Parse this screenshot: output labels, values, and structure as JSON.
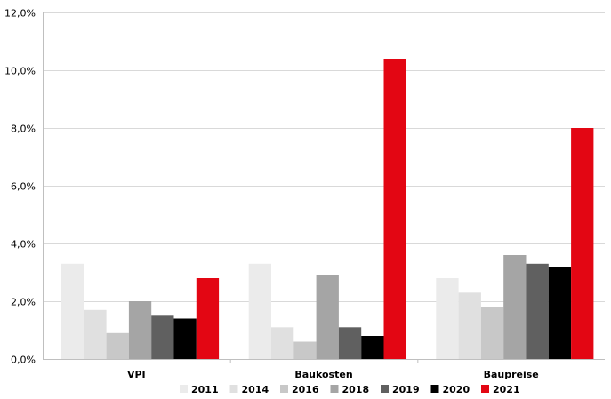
{
  "chart_data": {
    "type": "bar",
    "categories": [
      "VPI",
      "Baukosten",
      "Baupreise"
    ],
    "series": [
      {
        "name": "2011",
        "color": "#ebebeb",
        "values": [
          3.3,
          3.3,
          2.8
        ]
      },
      {
        "name": "2014",
        "color": "#e0e0e0",
        "values": [
          1.7,
          1.1,
          2.3
        ]
      },
      {
        "name": "2016",
        "color": "#c8c8c8",
        "values": [
          0.9,
          0.6,
          1.8
        ]
      },
      {
        "name": "2018",
        "color": "#a5a5a5",
        "values": [
          2.0,
          2.9,
          3.6
        ]
      },
      {
        "name": "2019",
        "color": "#606060",
        "values": [
          1.5,
          1.1,
          3.3
        ]
      },
      {
        "name": "2020",
        "color": "#000000",
        "values": [
          1.4,
          0.8,
          3.2
        ]
      },
      {
        "name": "2021",
        "color": "#e30613",
        "values": [
          2.8,
          10.4,
          8.0
        ]
      }
    ],
    "ylim": [
      0,
      12
    ],
    "yticks": [
      {
        "value": 0,
        "label": "0,0%"
      },
      {
        "value": 2,
        "label": "2,0%"
      },
      {
        "value": 4,
        "label": "4,0%"
      },
      {
        "value": 6,
        "label": "6,0%"
      },
      {
        "value": 8,
        "label": "8,0%"
      },
      {
        "value": 10,
        "label": "10,0%"
      },
      {
        "value": 12,
        "label": "12,0%"
      }
    ],
    "grid": true,
    "legend": "bottom"
  }
}
